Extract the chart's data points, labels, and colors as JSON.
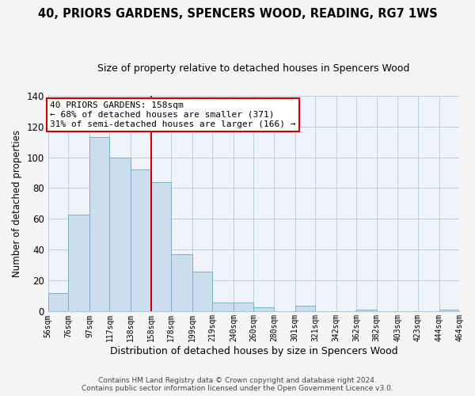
{
  "title": "40, PRIORS GARDENS, SPENCERS WOOD, READING, RG7 1WS",
  "subtitle": "Size of property relative to detached houses in Spencers Wood",
  "xlabel": "Distribution of detached houses by size in Spencers Wood",
  "ylabel": "Number of detached properties",
  "bar_color": "#ccdded",
  "bar_edge_color": "#7baecb",
  "bin_labels": [
    "56sqm",
    "76sqm",
    "97sqm",
    "117sqm",
    "138sqm",
    "158sqm",
    "178sqm",
    "199sqm",
    "219sqm",
    "240sqm",
    "260sqm",
    "280sqm",
    "301sqm",
    "321sqm",
    "342sqm",
    "362sqm",
    "382sqm",
    "403sqm",
    "423sqm",
    "444sqm",
    "464sqm"
  ],
  "bin_edges": [
    56,
    76,
    97,
    117,
    138,
    158,
    178,
    199,
    219,
    240,
    260,
    280,
    301,
    321,
    342,
    362,
    382,
    403,
    423,
    444,
    464
  ],
  "bar_heights": [
    12,
    63,
    113,
    100,
    92,
    84,
    37,
    26,
    6,
    6,
    3,
    0,
    4,
    0,
    0,
    1,
    0,
    0,
    0,
    1
  ],
  "vline_x": 158,
  "vline_color": "#cc0000",
  "ylim": [
    0,
    140
  ],
  "yticks": [
    0,
    20,
    40,
    60,
    80,
    100,
    120,
    140
  ],
  "annotation_title": "40 PRIORS GARDENS: 158sqm",
  "annotation_line1": "← 68% of detached houses are smaller (371)",
  "annotation_line2": "31% of semi-detached houses are larger (166) →",
  "annotation_box_color": "#ffffff",
  "annotation_box_edge": "#cc0000",
  "footer_line1": "Contains HM Land Registry data © Crown copyright and database right 2024.",
  "footer_line2": "Contains public sector information licensed under the Open Government Licence v3.0.",
  "fig_bg": "#f5f5f5",
  "plot_bg": "#eef4f9"
}
